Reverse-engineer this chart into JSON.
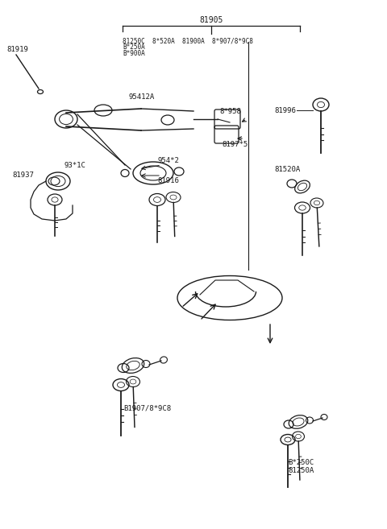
{
  "bg_color": "#ffffff",
  "line_color": "#1a1a1a",
  "fig_width": 4.8,
  "fig_height": 6.57,
  "dpi": 100,
  "top_label": "81905",
  "sub_labels_line1": "81250C  8*520A  81900A  8*907/8*9C8",
  "sub_labels_line2": "B*250A",
  "sub_labels_line3": "B*900A",
  "label_81919": "81919",
  "label_95412A": "95412A",
  "label_8958": "8*958",
  "label_81975": "8197*5",
  "label_93_1C": "93*1C",
  "label_81937": "81937",
  "label_9542": "954*2",
  "label_81916": "81916",
  "label_81996": "81996",
  "label_81520A": "81520A",
  "label_b1907": "B1907/8*9C8",
  "label_b250c": "B*250C",
  "label_81250a": "81250A"
}
